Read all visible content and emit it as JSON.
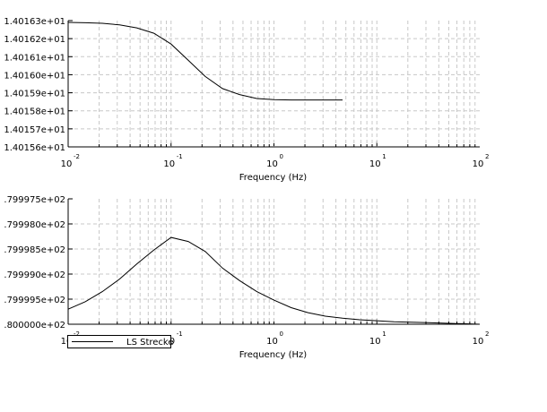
{
  "chart_data": [
    {
      "type": "line",
      "x_scale": "log",
      "xlim": [
        0.01,
        100
      ],
      "ylim": [
        14.0156,
        14.0163
      ],
      "xlabel": "Frequency (Hz)",
      "ylabel": "",
      "grid": true,
      "x_ticks": [
        {
          "base": "10",
          "exp": "-2"
        },
        {
          "base": "10",
          "exp": "-1"
        },
        {
          "base": "10",
          "exp": "0"
        },
        {
          "base": "10",
          "exp": "1"
        },
        {
          "base": "10",
          "exp": "2"
        }
      ],
      "y_ticks": [
        {
          "value": 14.0156,
          "label": "1.40156e+01"
        },
        {
          "value": 14.0157,
          "label": "1.40157e+01"
        },
        {
          "value": 14.0158,
          "label": "1.40158e+01"
        },
        {
          "value": 14.0159,
          "label": "1.40159e+01"
        },
        {
          "value": 14.016,
          "label": "1.40160e+01"
        },
        {
          "value": 14.0161,
          "label": "1.40161e+01"
        },
        {
          "value": 14.0162,
          "label": "1.40162e+01"
        },
        {
          "value": 14.0163,
          "label": "1.40163e+01"
        }
      ],
      "series": [
        {
          "name": "LS Strecke",
          "x": [
            0.01,
            0.0147,
            0.0215,
            0.0316,
            0.0464,
            0.0681,
            0.1,
            0.147,
            0.215,
            0.316,
            0.464,
            0.681,
            1,
            1.47,
            2.15,
            3.16,
            4.64
          ],
          "y": [
            14.01629,
            14.016288,
            14.016285,
            14.016276,
            14.01626,
            14.01623,
            14.01617,
            14.01608,
            14.01599,
            14.015923,
            14.01589,
            14.015868,
            14.015862,
            14.01586,
            14.01586,
            14.01586,
            14.01586
          ]
        }
      ]
    },
    {
      "type": "line",
      "x_scale": "log",
      "xlim": [
        0.01,
        100
      ],
      "ylim": [
        -0.8,
        -0.799975
      ],
      "xlabel": "Frequency (Hz)",
      "ylabel": "",
      "grid": true,
      "x_ticks": [
        {
          "base": "10",
          "exp": "-2"
        },
        {
          "base": "10",
          "exp": "-1"
        },
        {
          "base": "10",
          "exp": "0"
        },
        {
          "base": "10",
          "exp": "1"
        },
        {
          "base": "10",
          "exp": "2"
        }
      ],
      "y_ticks": [
        {
          "value": -0.799975,
          "label": ".799975e+02"
        },
        {
          "value": -0.79998,
          "label": ".799980e+02"
        },
        {
          "value": -0.799985,
          "label": ".799985e+02"
        },
        {
          "value": -0.79999,
          "label": ".799990e+02"
        },
        {
          "value": -0.799995,
          "label": ".799995e+02"
        },
        {
          "value": -0.8,
          "label": ".800000e+02"
        }
      ],
      "series": [
        {
          "name": "LS Strecke",
          "x": [
            0.01,
            0.0147,
            0.0215,
            0.0316,
            0.0464,
            0.0681,
            0.1,
            0.147,
            0.215,
            0.316,
            0.464,
            0.681,
            1,
            1.47,
            2.15,
            3.16,
            4.64,
            6.81,
            10,
            14.7,
            21.5,
            31.6,
            46.4,
            68.1,
            100
          ],
          "y": [
            -0.799997,
            -0.7999955,
            -0.7999935,
            -0.799991,
            -0.799988,
            -0.7999852,
            -0.7999827,
            -0.7999835,
            -0.7999855,
            -0.7999888,
            -0.7999913,
            -0.7999935,
            -0.7999952,
            -0.7999967,
            -0.7999977,
            -0.7999984,
            -0.7999988,
            -0.7999991,
            -0.7999993,
            -0.7999995,
            -0.7999996,
            -0.7999997,
            -0.7999998,
            -0.7999999,
            -0.8
          ]
        }
      ]
    }
  ],
  "legend": {
    "label": "LS Strecke"
  }
}
